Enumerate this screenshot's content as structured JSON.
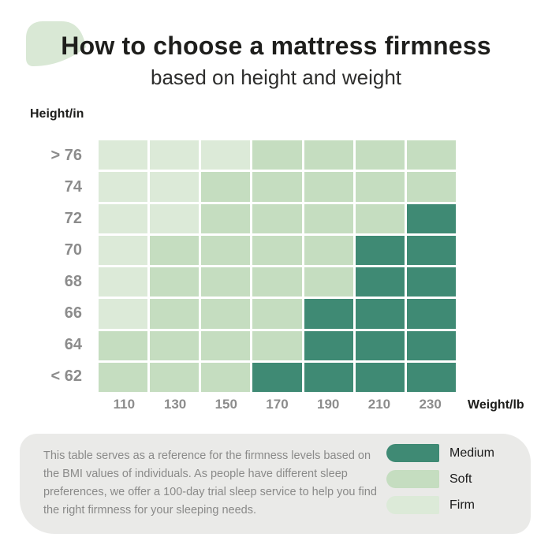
{
  "header": {
    "title": "How to choose a mattress firmness",
    "subtitle": "based on height and weight"
  },
  "chart_data": {
    "type": "heatmap",
    "title": "How to choose a mattress firmness",
    "subtitle": "based on height and weight",
    "x_axis_label": "Weight/lb",
    "y_axis_label": "Height/in",
    "columns": [
      "110",
      "130",
      "150",
      "170",
      "190",
      "210",
      "230"
    ],
    "rows": [
      "> 76",
      "74",
      "72",
      "70",
      "68",
      "66",
      "64",
      "< 62"
    ],
    "cells": [
      [
        "firm",
        "firm",
        "firm",
        "soft",
        "soft",
        "soft",
        "soft"
      ],
      [
        "firm",
        "firm",
        "soft",
        "soft",
        "soft",
        "soft",
        "soft"
      ],
      [
        "firm",
        "firm",
        "soft",
        "soft",
        "soft",
        "soft",
        "medium"
      ],
      [
        "firm",
        "soft",
        "soft",
        "soft",
        "soft",
        "medium",
        "medium"
      ],
      [
        "firm",
        "soft",
        "soft",
        "soft",
        "soft",
        "medium",
        "medium"
      ],
      [
        "firm",
        "soft",
        "soft",
        "soft",
        "medium",
        "medium",
        "medium"
      ],
      [
        "soft",
        "soft",
        "soft",
        "soft",
        "medium",
        "medium",
        "medium"
      ],
      [
        "soft",
        "soft",
        "soft",
        "medium",
        "medium",
        "medium",
        "medium"
      ]
    ],
    "legend": [
      {
        "label": "Medium",
        "key": "medium"
      },
      {
        "label": "Soft",
        "key": "soft"
      },
      {
        "label": "Firm",
        "key": "firm"
      }
    ],
    "colors": {
      "medium": "#3f8a74",
      "soft": "#c5ddc0",
      "firm": "#dcead8",
      "leaf": "#d9e8d5",
      "panel": "#eaeae8"
    },
    "legend_position": "bottom-right",
    "grid": "white gaps between cells"
  },
  "footer": {
    "note": "This table serves as a reference for the firmness levels based on the BMI values of individuals. As people have different sleep preferences, we offer a 100-day trial sleep service to help you find the right firmness for your sleeping needs."
  }
}
